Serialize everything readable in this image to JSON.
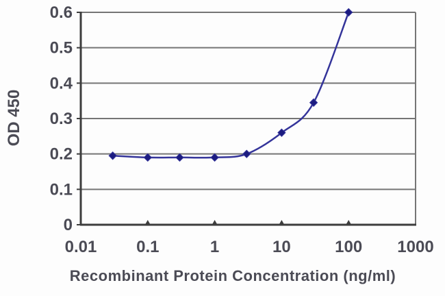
{
  "chart_data": {
    "type": "line",
    "title": "",
    "x": [
      0.03,
      0.1,
      0.3,
      1,
      3,
      10,
      30,
      100
    ],
    "series": [
      {
        "name": "OD 450",
        "values": [
          0.195,
          0.19,
          0.19,
          0.19,
          0.2,
          0.26,
          0.345,
          0.6
        ]
      }
    ],
    "xlabel": "Recombinant Protein Concentration (ng/ml)",
    "ylabel": "OD 450",
    "xscale": "log",
    "xlim": [
      0.01,
      1000
    ],
    "ylim": [
      0,
      0.6
    ],
    "xtick_values": [
      0.01,
      0.1,
      1,
      10,
      100,
      1000
    ],
    "xtick_labels": [
      "0.01",
      "0.1",
      "1",
      "10",
      "100",
      "1000"
    ],
    "ytick_values": [
      0,
      0.1,
      0.2,
      0.3,
      0.4,
      0.5,
      0.6
    ],
    "ytick_labels": [
      "0",
      "0.1",
      "0.2",
      "0.3",
      "0.4",
      "0.5",
      "0.6"
    ],
    "grid": "horizontal",
    "legend": "none",
    "marker": "diamond",
    "colors": {
      "line": "#34349a",
      "marker": "#1c1c80",
      "grid": "#757575",
      "axis": "#3d3d3d",
      "text": "#4b4b55",
      "background": "#fdfdfd"
    }
  }
}
